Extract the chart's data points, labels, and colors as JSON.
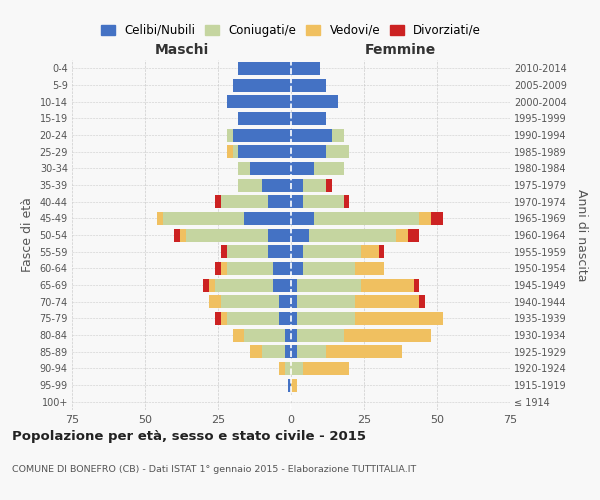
{
  "age_groups": [
    "100+",
    "95-99",
    "90-94",
    "85-89",
    "80-84",
    "75-79",
    "70-74",
    "65-69",
    "60-64",
    "55-59",
    "50-54",
    "45-49",
    "40-44",
    "35-39",
    "30-34",
    "25-29",
    "20-24",
    "15-19",
    "10-14",
    "5-9",
    "0-4"
  ],
  "birth_years": [
    "≤ 1914",
    "1915-1919",
    "1920-1924",
    "1925-1929",
    "1930-1934",
    "1935-1939",
    "1940-1944",
    "1945-1949",
    "1950-1954",
    "1955-1959",
    "1960-1964",
    "1965-1969",
    "1970-1974",
    "1975-1979",
    "1980-1984",
    "1985-1989",
    "1990-1994",
    "1995-1999",
    "2000-2004",
    "2005-2009",
    "2010-2014"
  ],
  "colors": {
    "celibe": "#4472c4",
    "coniugato": "#c5d5a0",
    "vedovo": "#f0c060",
    "divorziato": "#cc2222"
  },
  "maschi": {
    "celibe": [
      0,
      1,
      0,
      2,
      2,
      4,
      4,
      6,
      6,
      8,
      8,
      16,
      8,
      10,
      14,
      18,
      20,
      18,
      22,
      20,
      18
    ],
    "coniugato": [
      0,
      0,
      2,
      8,
      14,
      18,
      20,
      20,
      16,
      14,
      28,
      28,
      16,
      8,
      4,
      2,
      2,
      0,
      0,
      0,
      0
    ],
    "vedovo": [
      0,
      0,
      2,
      4,
      4,
      2,
      4,
      2,
      2,
      0,
      2,
      2,
      0,
      0,
      0,
      2,
      0,
      0,
      0,
      0,
      0
    ],
    "divorziato": [
      0,
      0,
      0,
      0,
      0,
      2,
      0,
      2,
      2,
      2,
      2,
      0,
      2,
      0,
      0,
      0,
      0,
      0,
      0,
      0,
      0
    ]
  },
  "femmine": {
    "nubile": [
      0,
      0,
      0,
      2,
      2,
      2,
      2,
      2,
      4,
      4,
      6,
      8,
      4,
      4,
      8,
      12,
      14,
      12,
      16,
      12,
      10
    ],
    "coniugata": [
      0,
      0,
      4,
      10,
      16,
      20,
      20,
      22,
      18,
      20,
      30,
      36,
      14,
      8,
      10,
      8,
      4,
      0,
      0,
      0,
      0
    ],
    "vedova": [
      0,
      2,
      16,
      26,
      30,
      30,
      22,
      18,
      10,
      6,
      4,
      4,
      0,
      0,
      0,
      0,
      0,
      0,
      0,
      0,
      0
    ],
    "divorziata": [
      0,
      0,
      0,
      0,
      0,
      0,
      2,
      2,
      0,
      2,
      4,
      4,
      2,
      2,
      0,
      0,
      0,
      0,
      0,
      0,
      0
    ]
  },
  "xlim": 75,
  "title": "Popolazione per età, sesso e stato civile - 2015",
  "subtitle": "COMUNE DI BONEFRO (CB) - Dati ISTAT 1° gennaio 2015 - Elaborazione TUTTITALIA.IT",
  "ylabel_left": "Fasce di età",
  "ylabel_right": "Anni di nascita",
  "xlabel_maschi": "Maschi",
  "xlabel_femmine": "Femmine",
  "legend_labels": [
    "Celibi/Nubili",
    "Coniugati/e",
    "Vedovi/e",
    "Divorziati/e"
  ],
  "bg_color": "#f8f8f8",
  "grid_color": "#cccccc"
}
